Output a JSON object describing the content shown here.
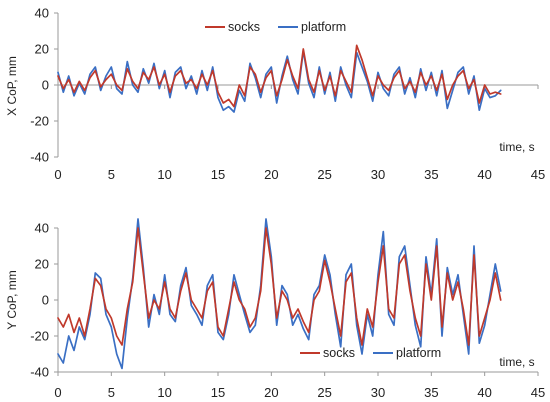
{
  "colors": {
    "socks": "#c0392b",
    "platform": "#3a6fc4",
    "axis": "#9a9a9a"
  },
  "chart_data": [
    {
      "type": "line",
      "ylabel": "X CoP, mm",
      "xlabel": "time, s",
      "xlim": [
        0,
        45
      ],
      "ylim": [
        -40,
        40
      ],
      "xticks": [
        "0",
        "5",
        "10",
        "15",
        "20",
        "25",
        "30",
        "35",
        "40",
        "45"
      ],
      "yticks": [
        "40",
        "20",
        "0",
        "-20",
        "-40"
      ],
      "x_axis_at": 0,
      "legend": "top-center",
      "series": [
        {
          "name": "socks",
          "x": [
            0,
            0.5,
            1,
            1.5,
            2,
            2.5,
            3,
            3.5,
            4,
            4.5,
            5,
            5.5,
            6,
            6.5,
            7,
            7.5,
            8,
            8.5,
            9,
            9.5,
            10,
            10.5,
            11,
            11.5,
            12,
            12.5,
            13,
            13.5,
            14,
            14.5,
            15,
            15.5,
            16,
            16.5,
            17,
            17.5,
            18,
            18.5,
            19,
            19.5,
            20,
            20.5,
            21,
            21.5,
            22,
            22.5,
            23,
            23.5,
            24,
            24.5,
            25,
            25.5,
            26,
            26.5,
            27,
            27.5,
            28,
            28.5,
            29,
            29.5,
            30,
            30.5,
            31,
            31.5,
            32,
            32.5,
            33,
            33.5,
            34,
            34.5,
            35,
            35.5,
            36,
            36.5,
            37,
            37.5,
            38,
            38.5,
            39,
            39.5,
            40,
            40.5,
            41,
            41.5
          ],
          "y": [
            5,
            -2,
            3,
            -4,
            2,
            -3,
            4,
            8,
            -1,
            3,
            6,
            0,
            -3,
            9,
            2,
            -2,
            7,
            3,
            10,
            0,
            6,
            -4,
            5,
            8,
            1,
            3,
            -2,
            6,
            0,
            8,
            -4,
            -10,
            -8,
            -12,
            0,
            -6,
            10,
            6,
            -4,
            4,
            8,
            -6,
            3,
            14,
            5,
            -2,
            20,
            3,
            -4,
            8,
            -3,
            5,
            -6,
            8,
            2,
            -4,
            22,
            14,
            4,
            -6,
            5,
            0,
            -3,
            4,
            8,
            -2,
            2,
            -4,
            7,
            0,
            5,
            -3,
            6,
            -8,
            0,
            5,
            8,
            -2,
            3,
            -10,
            0,
            -5,
            -4,
            -5
          ]
        },
        {
          "name": "platform",
          "x": [
            0,
            0.5,
            1,
            1.5,
            2,
            2.5,
            3,
            3.5,
            4,
            4.5,
            5,
            5.5,
            6,
            6.5,
            7,
            7.5,
            8,
            8.5,
            9,
            9.5,
            10,
            10.5,
            11,
            11.5,
            12,
            12.5,
            13,
            13.5,
            14,
            14.5,
            15,
            15.5,
            16,
            16.5,
            17,
            17.5,
            18,
            18.5,
            19,
            19.5,
            20,
            20.5,
            21,
            21.5,
            22,
            22.5,
            23,
            23.5,
            24,
            24.5,
            25,
            25.5,
            26,
            26.5,
            27,
            27.5,
            28,
            28.5,
            29,
            29.5,
            30,
            30.5,
            31,
            31.5,
            32,
            32.5,
            33,
            33.5,
            34,
            34.5,
            35,
            35.5,
            36,
            36.5,
            37,
            37.5,
            38,
            38.5,
            39,
            39.5,
            40,
            40.5,
            41,
            41.5
          ],
          "y": [
            7,
            -4,
            5,
            -6,
            1,
            -5,
            6,
            10,
            -3,
            5,
            10,
            -2,
            -5,
            13,
            0,
            -4,
            9,
            1,
            12,
            -2,
            8,
            -7,
            7,
            10,
            -2,
            5,
            -5,
            8,
            -3,
            10,
            -7,
            -14,
            -12,
            -15,
            -3,
            -9,
            12,
            4,
            -7,
            6,
            10,
            -10,
            5,
            16,
            3,
            -5,
            19,
            1,
            -7,
            10,
            -5,
            7,
            -9,
            10,
            0,
            -7,
            18,
            10,
            2,
            -9,
            7,
            -2,
            -6,
            6,
            10,
            -5,
            4,
            -7,
            9,
            -3,
            7,
            -6,
            8,
            -13,
            -3,
            7,
            10,
            -5,
            5,
            -14,
            -2,
            -7,
            -6,
            -3
          ]
        }
      ]
    },
    {
      "type": "line",
      "ylabel": "Y CoP, mm",
      "xlabel": "time, s",
      "xlim": [
        0,
        45
      ],
      "ylim": [
        -40,
        40
      ],
      "xticks": [
        "0",
        "5",
        "10",
        "15",
        "20",
        "25",
        "30",
        "35",
        "40",
        "45"
      ],
      "yticks": [
        "40",
        "20",
        "0",
        "-20",
        "-40"
      ],
      "x_axis_at": -40,
      "legend": "bottom-right",
      "series": [
        {
          "name": "socks",
          "x": [
            0,
            0.5,
            1,
            1.5,
            2,
            2.5,
            3,
            3.5,
            4,
            4.5,
            5,
            5.5,
            6,
            6.5,
            7,
            7.5,
            8,
            8.5,
            9,
            9.5,
            10,
            10.5,
            11,
            11.5,
            12,
            12.5,
            13,
            13.5,
            14,
            14.5,
            15,
            15.5,
            16,
            16.5,
            17,
            17.5,
            18,
            18.5,
            19,
            19.5,
            20,
            20.5,
            21,
            21.5,
            22,
            22.5,
            23,
            23.5,
            24,
            24.5,
            25,
            25.5,
            26,
            26.5,
            27,
            27.5,
            28,
            28.5,
            29,
            29.5,
            30,
            30.5,
            31,
            31.5,
            32,
            32.5,
            33,
            33.5,
            34,
            34.5,
            35,
            35.5,
            36,
            36.5,
            37,
            37.5,
            38,
            38.5,
            39,
            39.5,
            40,
            40.5,
            41,
            41.5
          ],
          "y": [
            -10,
            -15,
            -8,
            -18,
            -10,
            -20,
            -5,
            12,
            8,
            -5,
            -10,
            -20,
            -25,
            -5,
            10,
            40,
            15,
            -10,
            0,
            -5,
            10,
            -5,
            -10,
            5,
            15,
            0,
            -5,
            -10,
            5,
            10,
            -15,
            -20,
            -5,
            10,
            0,
            -5,
            -15,
            -10,
            5,
            40,
            20,
            -10,
            5,
            0,
            -10,
            -5,
            -12,
            -18,
            0,
            5,
            22,
            10,
            -5,
            -20,
            10,
            15,
            -10,
            -25,
            -5,
            -15,
            10,
            30,
            -5,
            -10,
            20,
            25,
            5,
            -10,
            -20,
            20,
            0,
            30,
            -15,
            15,
            0,
            10,
            -5,
            -25,
            25,
            -20,
            -10,
            0,
            15,
            0
          ]
        },
        {
          "name": "platform",
          "x": [
            0,
            0.5,
            1,
            1.5,
            2,
            2.5,
            3,
            3.5,
            4,
            4.5,
            5,
            5.5,
            6,
            6.5,
            7,
            7.5,
            8,
            8.5,
            9,
            9.5,
            10,
            10.5,
            11,
            11.5,
            12,
            12.5,
            13,
            13.5,
            14,
            14.5,
            15,
            15.5,
            16,
            16.5,
            17,
            17.5,
            18,
            18.5,
            19,
            19.5,
            20,
            20.5,
            21,
            21.5,
            22,
            22.5,
            23,
            23.5,
            24,
            24.5,
            25,
            25.5,
            26,
            26.5,
            27,
            27.5,
            28,
            28.5,
            29,
            29.5,
            30,
            30.5,
            31,
            31.5,
            32,
            32.5,
            33,
            33.5,
            34,
            34.5,
            35,
            35.5,
            36,
            36.5,
            37,
            37.5,
            38,
            38.5,
            39,
            39.5,
            40,
            40.5,
            41,
            41.5
          ],
          "y": [
            -30,
            -35,
            -20,
            -28,
            -15,
            -22,
            -8,
            15,
            12,
            -8,
            -15,
            -30,
            -38,
            -10,
            12,
            45,
            18,
            -15,
            3,
            -8,
            14,
            -8,
            -12,
            8,
            18,
            -3,
            -8,
            -14,
            8,
            14,
            -18,
            -22,
            -8,
            14,
            3,
            -8,
            -18,
            -14,
            8,
            45,
            24,
            -14,
            8,
            3,
            -14,
            -8,
            -16,
            -22,
            3,
            8,
            25,
            14,
            -8,
            -26,
            14,
            20,
            -14,
            -30,
            -8,
            -20,
            14,
            38,
            -8,
            -14,
            24,
            30,
            8,
            -14,
            -26,
            24,
            3,
            34,
            -20,
            18,
            3,
            14,
            -8,
            -30,
            30,
            -24,
            -14,
            3,
            20,
            5
          ]
        }
      ]
    }
  ]
}
